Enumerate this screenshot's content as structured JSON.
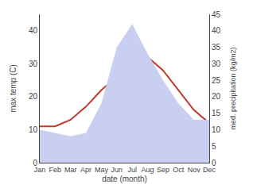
{
  "chart_data": {
    "type": "line",
    "xlabel": "date (month)",
    "ylabel": "max temp (C)",
    "y2label": "med. precipitation (kg/m2)",
    "categories": [
      "Jan",
      "Feb",
      "Mar",
      "Apr",
      "May",
      "Jun",
      "Jul",
      "Aug",
      "Sep",
      "Oct",
      "Nov",
      "Dec"
    ],
    "series": [
      {
        "type": "area",
        "axis": "y2",
        "color": "#c8cff0",
        "values": [
          10,
          9,
          8,
          9,
          18,
          35,
          42,
          33,
          25,
          18,
          13,
          13
        ]
      },
      {
        "type": "line",
        "color": "#c0392b",
        "values": [
          11,
          11,
          13,
          17,
          22,
          26,
          30,
          32,
          28,
          22,
          16,
          12
        ]
      }
    ],
    "ylim": [
      0,
      45
    ],
    "yticks": [
      0,
      10,
      20,
      30,
      40
    ],
    "y2lim": [
      0,
      45
    ],
    "y2ticks": [
      0,
      5,
      10,
      15,
      20,
      25,
      30,
      35,
      40,
      45
    ],
    "grid": false
  }
}
